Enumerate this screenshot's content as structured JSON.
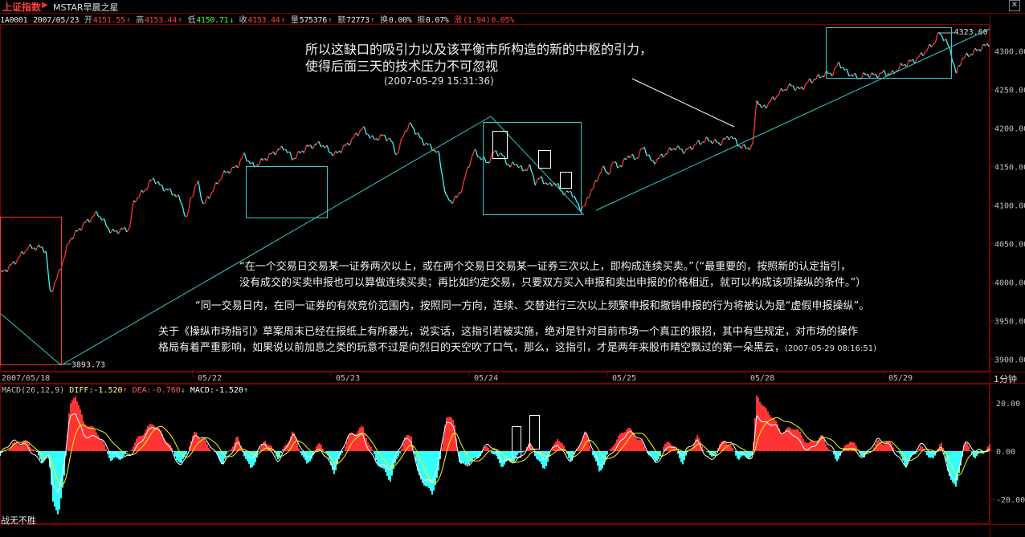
{
  "title": {
    "index_name": "上证指数",
    "arrow": "▶",
    "app_name": "MSTAR早晨之星"
  },
  "quote": {
    "code": "1A0001",
    "date": "2007/05/23",
    "open_label": "开",
    "open": "4151.55",
    "high_label": "高",
    "high": "4153.44",
    "low_label": "低",
    "low": "4150.71",
    "close_label": "收",
    "close": "4153.44",
    "volume_label": "量",
    "volume": "575376",
    "amount_label": "额",
    "amount": "72773",
    "turnover_label": "换",
    "turnover": "0.00%",
    "amplitude_label": "振",
    "amplitude": "0.07%",
    "change_label": "涨",
    "change": "(1.94)",
    "change_pct": "0.05%"
  },
  "annotations": {
    "top_line1": "所以这缺口的吸引力以及该平衡市所构造的新的中枢的引力，",
    "top_line2": "使得后面三天的技术压力不可忽视",
    "top_timestamp": "(2007-05-29 15:31:36)",
    "rule_line1": "“在一个交易日交易某一证券两次以上，或在两个交易日交易某一证券三次以上，即构成连续买卖。”（“最重要的，按照新的认定指引，",
    "rule_line2": "没有成交的买卖申报也可以算做连续买卖；再比如约定交易，只要双方买入申报和卖出申报的价格相近，就可以构成该项操纵的条件。”）",
    "rule_line3": "“同一交易日内，在同一证券的有效竞价范围内，按照同一方向，连续、交替进行三次以上频繁申报和撤销申报的行为将被认为是“虚假申报操纵”。",
    "comment_line1": "关于《操纵市场指引》草案周末已经在报纸上有所暴光，说实话，这指引若被实施，绝对是针对目前市场一个真正的狠招，其中有些规定，对市场的操作",
    "comment_line2": "格局有着严重影响，如果说以前加息之类的玩意不过是向烈日的天空吹了口气，那么，这指引，才是两年来股市晴空飘过的第一朵黑云，",
    "comment_timestamp": "(2007-05-29 08:16:51)"
  },
  "macd_header": {
    "label": "MACD(26,12,9)",
    "diff_label": "DIFF:",
    "diff": "-1.520",
    "dea_label": "DEA:",
    "dea": "-0.760",
    "macd_label": "MACD:",
    "macd": "-1.520"
  },
  "bottom_label": "战无不胜",
  "period_label": "1分钟",
  "colors": {
    "up": "#ff3333",
    "down": "#33ffff",
    "frame": "#800000",
    "diff": "#ffffff",
    "dea": "#ffff00",
    "trendline": "#33cccc",
    "box": "#ffffff"
  },
  "chart_data": [
    {
      "type": "line",
      "title": "上证指数 1分钟",
      "x_labels": [
        "2007/05/18",
        "05/22",
        "05/23",
        "05/24",
        "05/25",
        "05/28",
        "05/29"
      ],
      "ylim": [
        3885,
        4335
      ],
      "yticks": [
        3900,
        3950,
        4000,
        4050,
        4100,
        4150,
        4200,
        4250,
        4300
      ],
      "ytick_labels": [
        "3900.00",
        "3950.00",
        "4000.00",
        "4050.00",
        "4100.00",
        "4150.00",
        "4200.00",
        "4250.00",
        "4300.00"
      ],
      "max_marker": {
        "label": "4323.60",
        "value": 4323.6
      },
      "min_marker": {
        "label": "3893.73",
        "value": 3893.73
      },
      "keypoints": [
        [
          0,
          4010
        ],
        [
          1,
          4025
        ],
        [
          2,
          4045
        ],
        [
          3,
          4045
        ],
        [
          3.3,
          4040
        ],
        [
          3.6,
          3985
        ],
        [
          4.2,
          4010
        ],
        [
          5,
          4055
        ],
        [
          6,
          4075
        ],
        [
          7,
          4090
        ],
        [
          8,
          4065
        ],
        [
          9.3,
          4070
        ],
        [
          9.6,
          4105
        ],
        [
          10.4,
          4120
        ],
        [
          11,
          4135
        ],
        [
          11.5,
          4125
        ],
        [
          12,
          4120
        ],
        [
          12.5,
          4115
        ],
        [
          13,
          4105
        ],
        [
          13.4,
          4080
        ],
        [
          13.7,
          4110
        ],
        [
          14.2,
          4130
        ],
        [
          14.6,
          4100
        ],
        [
          15.3,
          4120
        ],
        [
          16,
          4140
        ],
        [
          17,
          4150
        ],
        [
          17.5,
          4165
        ],
        [
          18.2,
          4150
        ],
        [
          19,
          4160
        ],
        [
          19.8,
          4170
        ],
        [
          20.4,
          4175
        ],
        [
          21,
          4160
        ],
        [
          22,
          4175
        ],
        [
          23,
          4180
        ],
        [
          24,
          4165
        ],
        [
          25,
          4180
        ],
        [
          26,
          4200
        ],
        [
          26.8,
          4185
        ],
        [
          27.5,
          4190
        ],
        [
          28,
          4185
        ],
        [
          28.5,
          4165
        ],
        [
          29,
          4195
        ],
        [
          29.5,
          4205
        ],
        [
          30,
          4190
        ],
        [
          30.5,
          4180
        ],
        [
          31,
          4175
        ],
        [
          31.5,
          4165
        ],
        [
          32,
          4110
        ],
        [
          32.4,
          4105
        ],
        [
          32.8,
          4110
        ],
        [
          33.2,
          4125
        ],
        [
          33.6,
          4150
        ],
        [
          34,
          4170
        ],
        [
          34.6,
          4160
        ],
        [
          35,
          4155
        ],
        [
          35.5,
          4170
        ],
        [
          36,
          4165
        ],
        [
          36.6,
          4150
        ],
        [
          37,
          4155
        ],
        [
          37.5,
          4145
        ],
        [
          38,
          4150
        ],
        [
          38.4,
          4130
        ],
        [
          38.8,
          4135
        ],
        [
          39.4,
          4125
        ],
        [
          39.8,
          4130
        ],
        [
          40.2,
          4120
        ],
        [
          40.6,
          4115
        ],
        [
          41,
          4118
        ],
        [
          41.6,
          4095
        ],
        [
          42,
          4100
        ],
        [
          42.4,
          4120
        ],
        [
          42.8,
          4130
        ],
        [
          43.2,
          4150
        ],
        [
          43.6,
          4140
        ],
        [
          44,
          4155
        ],
        [
          44.6,
          4150
        ],
        [
          45,
          4165
        ],
        [
          45.6,
          4160
        ],
        [
          46.2,
          4175
        ],
        [
          46.8,
          4155
        ],
        [
          47.6,
          4165
        ],
        [
          48.4,
          4175
        ],
        [
          49.2,
          4170
        ],
        [
          50,
          4180
        ],
        [
          50.8,
          4185
        ],
        [
          51.6,
          4180
        ],
        [
          52.4,
          4190
        ],
        [
          53.2,
          4175
        ],
        [
          54,
          4175
        ],
        [
          54.3,
          4240
        ],
        [
          54.6,
          4225
        ],
        [
          55,
          4230
        ],
        [
          55.6,
          4240
        ],
        [
          56.2,
          4250
        ],
        [
          56.8,
          4255
        ],
        [
          57.4,
          4250
        ],
        [
          58,
          4260
        ],
        [
          58.6,
          4265
        ],
        [
          59.2,
          4270
        ],
        [
          59.8,
          4272
        ],
        [
          60.2,
          4285
        ],
        [
          60.6,
          4275
        ],
        [
          61,
          4270
        ],
        [
          61.6,
          4265
        ],
        [
          62.2,
          4270
        ],
        [
          62.8,
          4268
        ],
        [
          63.4,
          4272
        ],
        [
          64,
          4270
        ],
        [
          64.6,
          4280
        ],
        [
          65.2,
          4285
        ],
        [
          65.8,
          4290
        ],
        [
          66.4,
          4300
        ],
        [
          67,
          4310
        ],
        [
          67.4,
          4323.6
        ],
        [
          67.8,
          4315
        ],
        [
          68.2,
          4300
        ],
        [
          68.6,
          4270
        ],
        [
          69,
          4290
        ],
        [
          69.5,
          4295
        ],
        [
          70,
          4300
        ],
        [
          70.5,
          4305
        ],
        [
          71,
          4310
        ]
      ]
    },
    {
      "type": "bar",
      "title": "MACD(26,12,9)",
      "series": [
        {
          "name": "DIFF"
        },
        {
          "name": "DEA"
        },
        {
          "name": "MACD"
        }
      ],
      "ylim": [
        -30,
        28
      ],
      "yticks": [
        20,
        0,
        -20
      ],
      "ytick_labels": [
        "20.00",
        "0.00",
        "-20.00"
      ],
      "keypoints": [
        [
          0,
          -2
        ],
        [
          1,
          3
        ],
        [
          2,
          4
        ],
        [
          3,
          -4
        ],
        [
          3.5,
          -3
        ],
        [
          3.8,
          -20
        ],
        [
          4.2,
          -28
        ],
        [
          4.6,
          -10
        ],
        [
          5,
          18
        ],
        [
          5.4,
          24
        ],
        [
          6,
          12
        ],
        [
          7,
          8
        ],
        [
          8,
          -4
        ],
        [
          9,
          -2
        ],
        [
          10,
          6
        ],
        [
          11,
          12
        ],
        [
          12,
          4
        ],
        [
          13,
          -6
        ],
        [
          14,
          8
        ],
        [
          15,
          2
        ],
        [
          16,
          -5
        ],
        [
          17,
          6
        ],
        [
          18,
          -8
        ],
        [
          19,
          5
        ],
        [
          20,
          -3
        ],
        [
          21,
          8
        ],
        [
          22,
          -6
        ],
        [
          23,
          4
        ],
        [
          24,
          -9
        ],
        [
          25,
          6
        ],
        [
          26,
          10
        ],
        [
          27,
          -4
        ],
        [
          28,
          -12
        ],
        [
          29,
          5
        ],
        [
          29.5,
          7
        ],
        [
          30,
          -10
        ],
        [
          31,
          -18
        ],
        [
          31.5,
          -8
        ],
        [
          32,
          15
        ],
        [
          32.6,
          12
        ],
        [
          33,
          -6
        ],
        [
          34,
          -4
        ],
        [
          35,
          2
        ],
        [
          36,
          -6
        ],
        [
          37,
          -3
        ],
        [
          38,
          3
        ],
        [
          39,
          -8
        ],
        [
          40,
          6
        ],
        [
          41,
          -4
        ],
        [
          42,
          8
        ],
        [
          43,
          -9
        ],
        [
          44,
          3
        ],
        [
          45,
          10
        ],
        [
          46,
          4
        ],
        [
          47,
          -5
        ],
        [
          48,
          5
        ],
        [
          49,
          -5
        ],
        [
          50,
          6
        ],
        [
          51,
          -3
        ],
        [
          52,
          5
        ],
        [
          53,
          -3
        ],
        [
          54,
          -2
        ],
        [
          54.3,
          24
        ],
        [
          54.8,
          18
        ],
        [
          55.5,
          14
        ],
        [
          56,
          8
        ],
        [
          57,
          10
        ],
        [
          58,
          3
        ],
        [
          59,
          6
        ],
        [
          60,
          -4
        ],
        [
          61,
          5
        ],
        [
          62,
          -3
        ],
        [
          63,
          4
        ],
        [
          64,
          3
        ],
        [
          65,
          -6
        ],
        [
          66,
          2
        ],
        [
          67,
          -4
        ],
        [
          67.5,
          5
        ],
        [
          68,
          -8
        ],
        [
          68.6,
          -16
        ],
        [
          69.2,
          4
        ],
        [
          70,
          -3
        ],
        [
          71,
          2
        ]
      ]
    }
  ]
}
